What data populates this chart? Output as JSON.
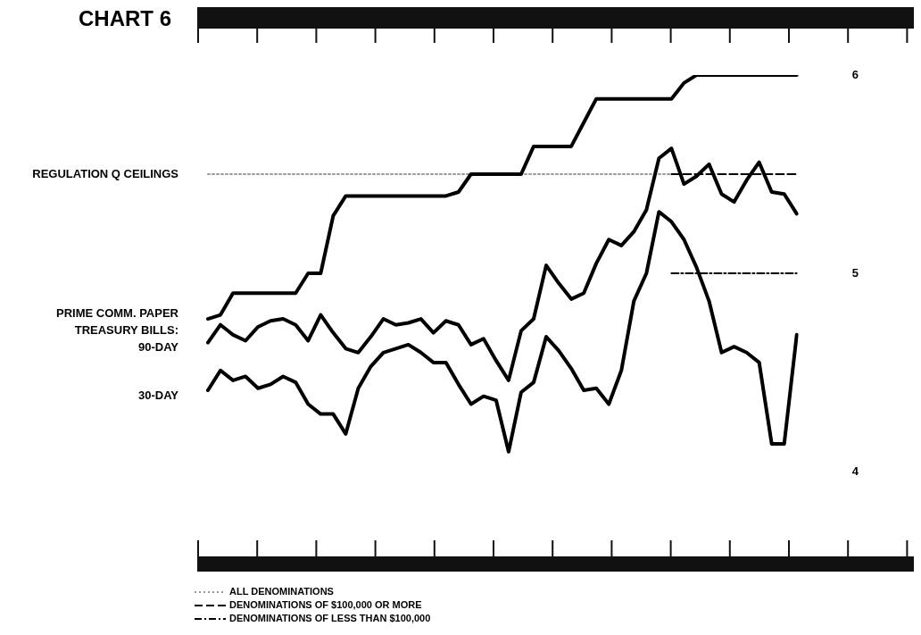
{
  "chart_data": {
    "type": "line",
    "title": "CHART 6",
    "categories": [
      null,
      null,
      null,
      null,
      null,
      null,
      null,
      null,
      null,
      null,
      null,
      null,
      null,
      null,
      null,
      null,
      null,
      null,
      null,
      null,
      null,
      null,
      null,
      null,
      null,
      null,
      null,
      null,
      null,
      null,
      null,
      null,
      null,
      null,
      null,
      null,
      null,
      null,
      null,
      null,
      null,
      null,
      null,
      null,
      null,
      null,
      null,
      null
    ],
    "series": [
      {
        "name": "PRIME COMM. PAPER",
        "color": "#000000",
        "line_style": "solid",
        "values": [
          4.77,
          4.79,
          4.9,
          4.9,
          4.9,
          4.9,
          4.9,
          4.9,
          5.0,
          5.0,
          5.29,
          5.39,
          5.39,
          5.39,
          5.39,
          5.39,
          5.39,
          5.39,
          5.39,
          5.39,
          5.41,
          5.5,
          5.5,
          5.5,
          5.5,
          5.5,
          5.64,
          5.64,
          5.64,
          5.64,
          5.76,
          5.88,
          5.88,
          5.88,
          5.88,
          5.88,
          5.88,
          5.88,
          5.96,
          6.0,
          6.0,
          6.0,
          6.0,
          6.0,
          6.0,
          6.0,
          6.0,
          6.0
        ]
      },
      {
        "name": "90-DAY",
        "color": "#000000",
        "line_style": "solid",
        "values": [
          4.65,
          4.74,
          4.69,
          4.66,
          4.73,
          4.76,
          4.77,
          4.74,
          4.66,
          4.79,
          4.7,
          4.62,
          4.6,
          4.68,
          4.77,
          4.74,
          4.75,
          4.77,
          4.7,
          4.76,
          4.74,
          4.64,
          4.67,
          4.56,
          4.46,
          4.71,
          4.77,
          5.04,
          4.95,
          4.87,
          4.9,
          5.05,
          5.17,
          5.14,
          5.21,
          5.32,
          5.58,
          5.63,
          5.45,
          5.49,
          5.55,
          5.4,
          5.36,
          5.47,
          5.56,
          5.41,
          5.4,
          5.3
        ]
      },
      {
        "name": "30-DAY",
        "color": "#000000",
        "line_style": "solid",
        "values": [
          4.41,
          4.51,
          4.46,
          4.48,
          4.42,
          4.44,
          4.48,
          4.45,
          4.34,
          4.29,
          4.29,
          4.19,
          4.42,
          4.53,
          4.6,
          4.62,
          4.64,
          4.6,
          4.55,
          4.55,
          4.44,
          4.34,
          4.38,
          4.36,
          4.1,
          4.4,
          4.45,
          4.68,
          4.61,
          4.52,
          4.41,
          4.42,
          4.34,
          4.51,
          4.86,
          5.0,
          5.31,
          5.26,
          5.17,
          5.03,
          4.86,
          4.6,
          4.63,
          4.6,
          4.55,
          4.14,
          4.14,
          4.69
        ]
      },
      {
        "name": "ALL DENOMINATIONS",
        "color": "#999999",
        "line_style": "dotted",
        "values": [
          5.5,
          5.5,
          5.5,
          5.5,
          5.5,
          5.5,
          5.5,
          5.5,
          5.5,
          5.5,
          5.5,
          5.5,
          5.5,
          5.5,
          5.5,
          5.5,
          5.5,
          5.5,
          5.5,
          5.5,
          5.5,
          5.5,
          5.5,
          5.5,
          5.5,
          5.5,
          5.5,
          5.5,
          5.5,
          5.5,
          5.5,
          5.5,
          5.5,
          5.5,
          5.5,
          5.5,
          5.5,
          5.5,
          null,
          null,
          null,
          null,
          null,
          null,
          null,
          null,
          null,
          null
        ]
      },
      {
        "name": "DENOMINATIONS OF $100,000 OR MORE",
        "color": "#000000",
        "line_style": "dashed",
        "values": [
          null,
          null,
          null,
          null,
          null,
          null,
          null,
          null,
          null,
          null,
          null,
          null,
          null,
          null,
          null,
          null,
          null,
          null,
          null,
          null,
          null,
          null,
          null,
          null,
          null,
          null,
          null,
          null,
          null,
          null,
          null,
          null,
          null,
          null,
          null,
          null,
          null,
          5.5,
          5.5,
          5.5,
          5.5,
          5.5,
          5.5,
          5.5,
          5.5,
          5.5,
          5.5,
          5.5
        ]
      },
      {
        "name": "DENOMINATIONS OF LESS THAN $100,000",
        "color": "#000000",
        "line_style": "dashdot",
        "values": [
          null,
          null,
          null,
          null,
          null,
          null,
          null,
          null,
          null,
          null,
          null,
          null,
          null,
          null,
          null,
          null,
          null,
          null,
          null,
          null,
          null,
          null,
          null,
          null,
          null,
          null,
          null,
          null,
          null,
          null,
          null,
          null,
          null,
          null,
          null,
          null,
          null,
          5.0,
          5.0,
          5.0,
          5.0,
          5.0,
          5.0,
          5.0,
          5.0,
          5.0,
          5.0,
          5.0
        ]
      }
    ],
    "annotations": [
      "REGULATION Q CEILINGS",
      "TREASURY BILLS:"
    ],
    "ylim": [
      4,
      6
    ],
    "yticks": [
      4,
      5,
      6
    ],
    "grid": false,
    "legend": "bottom",
    "tick_labels": "y",
    "marker": "none"
  }
}
